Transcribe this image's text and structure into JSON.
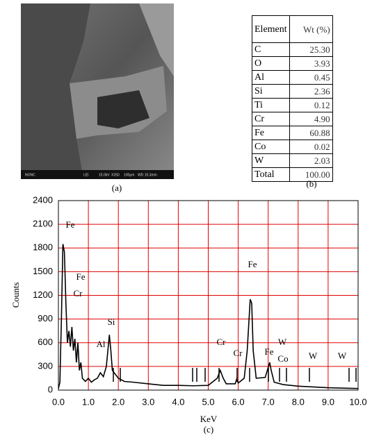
{
  "panel_a": {
    "caption": "(a)",
    "info": [
      "NONC",
      "LEI",
      "15.0kV",
      "X250",
      "100μm",
      "WD 15.3mm"
    ]
  },
  "table": {
    "caption": "(b)",
    "header": [
      "Element",
      "Wt (%)"
    ],
    "rows": [
      [
        "C",
        "25.30"
      ],
      [
        "O",
        "3.93"
      ],
      [
        "Al",
        "0.45"
      ],
      [
        "Si",
        "2.36"
      ],
      [
        "Ti",
        "0.12"
      ],
      [
        "Cr",
        "4.90"
      ],
      [
        "Fe",
        "60.88"
      ],
      [
        "Co",
        "0.02"
      ],
      [
        "W",
        "2.03"
      ],
      [
        "Total",
        "100.00"
      ]
    ]
  },
  "chart_data": {
    "type": "line",
    "x_label": "KeV",
    "y_label": "Counts",
    "caption": "(c)",
    "color": "#000000",
    "grid": true,
    "grid_color": "#e00000",
    "x": [
      0.0,
      0.05,
      0.1,
      0.15,
      0.2,
      0.25,
      0.3,
      0.35,
      0.4,
      0.45,
      0.5,
      0.55,
      0.6,
      0.65,
      0.7,
      0.75,
      0.8,
      0.9,
      1.0,
      1.1,
      1.2,
      1.3,
      1.4,
      1.5,
      1.6,
      1.7,
      1.75,
      1.8,
      1.9,
      2.0,
      2.2,
      2.5,
      3.0,
      3.5,
      4.0,
      4.5,
      5.0,
      5.3,
      5.4,
      5.5,
      5.6,
      5.9,
      5.95,
      6.0,
      6.2,
      6.3,
      6.4,
      6.45,
      6.5,
      6.6,
      6.9,
      7.05,
      7.1,
      7.2,
      7.5,
      8.0,
      9.0,
      10.0
    ],
    "values": [
      20,
      100,
      900,
      1850,
      1750,
      1100,
      600,
      750,
      550,
      800,
      500,
      650,
      350,
      600,
      250,
      350,
      150,
      110,
      150,
      100,
      130,
      150,
      220,
      170,
      300,
      700,
      500,
      250,
      200,
      150,
      110,
      100,
      80,
      60,
      60,
      55,
      60,
      150,
      250,
      150,
      80,
      80,
      140,
      90,
      150,
      500,
      1150,
      1100,
      500,
      150,
      160,
      350,
      250,
      100,
      70,
      50,
      30,
      20
    ],
    "annotations": [
      "Fe",
      "Fe",
      "Cr",
      "Si",
      "Al",
      "Cr",
      "Cr",
      "Fe",
      "Fe",
      "Co",
      "W",
      "W",
      "W"
    ],
    "xlim": [
      0,
      10
    ],
    "ylim": [
      0,
      2400
    ],
    "xticks": [
      {
        "value": 0,
        "label": "0.0"
      },
      {
        "value": 1,
        "label": "1.0"
      },
      {
        "value": 2,
        "label": "2.0"
      },
      {
        "value": 3,
        "label": "3.0"
      },
      {
        "value": 4,
        "label": "4.0"
      },
      {
        "value": 5,
        "label": "5.0"
      },
      {
        "value": 6,
        "label": "6.0"
      },
      {
        "value": 7,
        "label": "7.0"
      },
      {
        "value": 8,
        "label": "8.0"
      },
      {
        "value": 9,
        "label": "9.0"
      },
      {
        "value": 10,
        "label": "10.0"
      }
    ],
    "yticks": [
      0,
      300,
      600,
      900,
      1200,
      1500,
      1800,
      2100,
      2400
    ]
  }
}
